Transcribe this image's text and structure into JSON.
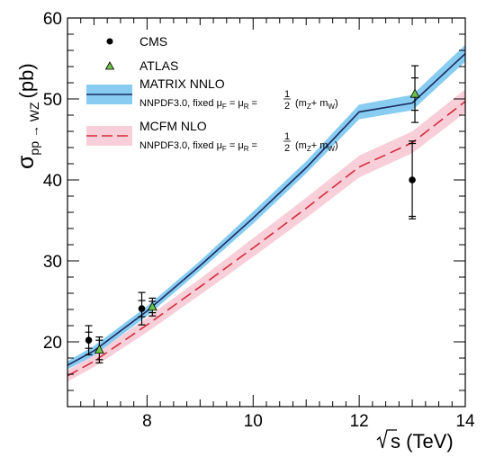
{
  "chart_data": {
    "type": "line",
    "xlabel": "s (TeV)",
    "ylabel_main": "σ",
    "ylabel_sub": "pp → WZ",
    "ylabel_unit": "(pb)",
    "xlim": [
      6.5,
      14
    ],
    "ylim": [
      12,
      60
    ],
    "x_ticks": [
      8,
      10,
      12,
      14
    ],
    "y_ticks": [
      20,
      30,
      40,
      50,
      60
    ],
    "colors": {
      "matrix_line": "#1a2a5e",
      "matrix_band": "#88ccf2",
      "mcfm_line": "#d42a3c",
      "mcfm_band": "#f8cfd8",
      "atlas_marker": "#6ec24a"
    },
    "series": [
      {
        "name": "MATRIX NNLO",
        "note": "NNPDF3.0, fixed μ",
        "kind": "band-line",
        "x": [
          6.5,
          7,
          8,
          9,
          10,
          11,
          12,
          13,
          14
        ],
        "y": [
          17.1,
          18.9,
          23.8,
          29.4,
          35.3,
          41.5,
          48.4,
          49.5,
          55.6
        ],
        "band_lo": [
          16.6,
          18.3,
          23.2,
          28.8,
          34.6,
          40.8,
          47.5,
          48.6,
          54.6
        ],
        "band_hi": [
          17.6,
          19.5,
          24.4,
          30.0,
          36.1,
          42.3,
          49.3,
          50.5,
          56.7
        ]
      },
      {
        "name": "MCFM NLO",
        "note": "NNPDF3.0, fixed μ",
        "kind": "band-dashed-line",
        "x": [
          6.5,
          7,
          8,
          9,
          10,
          11,
          12,
          13,
          14
        ],
        "y": [
          15.8,
          17.6,
          22.1,
          26.8,
          31.6,
          36.5,
          41.6,
          44.6,
          49.7
        ],
        "band_lo": [
          15.1,
          16.9,
          21.2,
          25.8,
          30.5,
          35.3,
          40.3,
          43.3,
          48.3
        ],
        "band_hi": [
          16.5,
          18.4,
          23.0,
          27.8,
          32.8,
          37.8,
          43.0,
          46.0,
          51.2
        ]
      },
      {
        "name": "CMS",
        "kind": "points",
        "marker": "circle",
        "x": [
          6.9,
          7.9,
          13.0
        ],
        "y": [
          20.2,
          24.1,
          40.0
        ],
        "err_inner": [
          1.0,
          1.0,
          4.5
        ],
        "err_outer": [
          1.8,
          2.0,
          4.8
        ]
      },
      {
        "name": "ATLAS",
        "kind": "points",
        "marker": "triangle",
        "x": [
          7.1,
          8.1,
          13.05
        ],
        "y": [
          19.0,
          24.3,
          50.6
        ],
        "err_inner": [
          1.2,
          0.7,
          2.0
        ],
        "err_outer": [
          1.6,
          1.1,
          3.5
        ]
      }
    ],
    "legend": {
      "placement": "top-left",
      "entries": {
        "cms": "CMS",
        "atlas": "ATLAS",
        "matrix": "MATRIX NNLO",
        "mcfm": "MCFM NLO",
        "nnpdf_lead": "NNPDF3.0, fixed μ",
        "sub_f": "F",
        "eq1": " = μ",
        "sub_r": "R",
        "eq2": " = ",
        "frac_num": "1",
        "frac_den": "2",
        "paren_open": "(m",
        "sub_z": "Z",
        "plus": "+ m",
        "sub_w": "W",
        "paren_close": ")"
      }
    }
  }
}
